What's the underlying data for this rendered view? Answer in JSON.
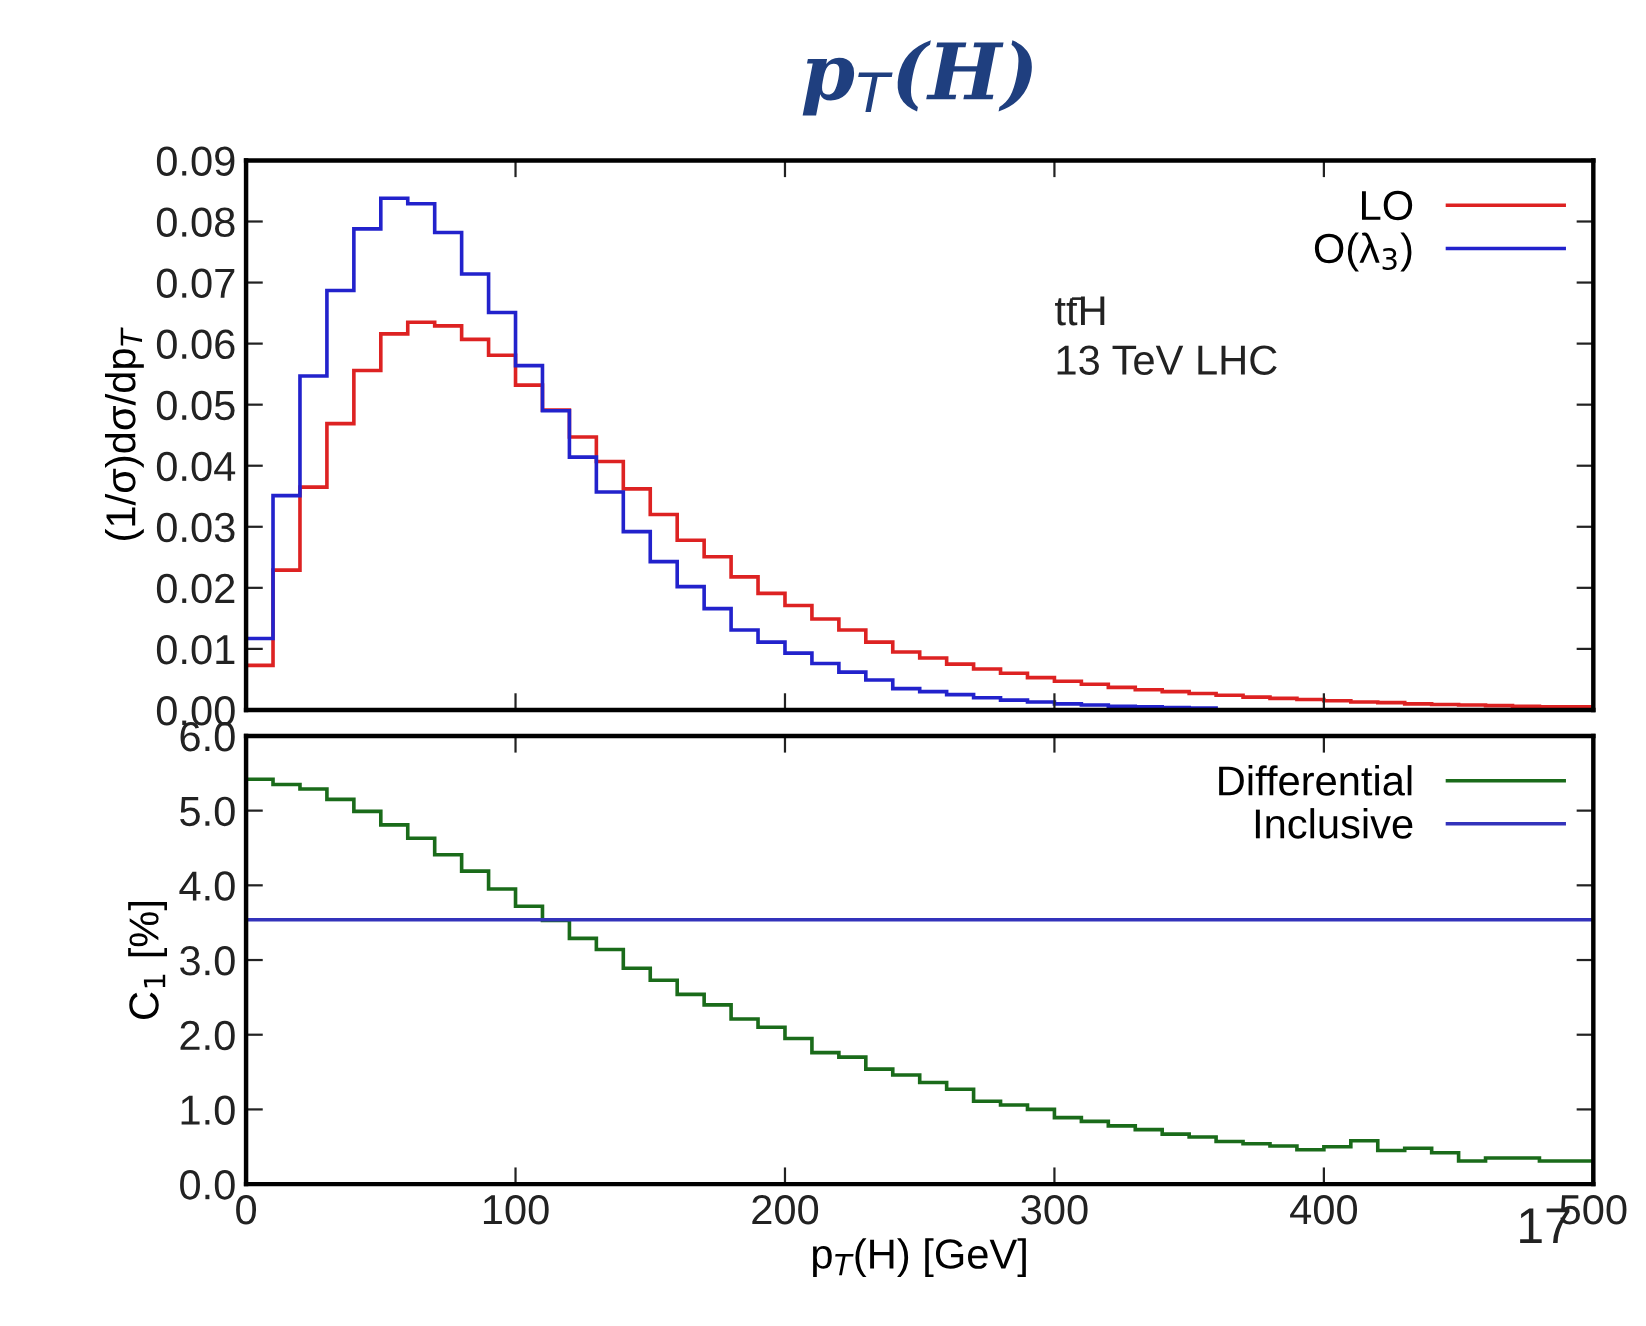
{
  "chart_data": [
    {
      "type": "histogram",
      "title": "p$_{T}$(H)",
      "ylabel": "(1/σ)dσ/dp$_{T}$",
      "bins": [
        0,
        10,
        20,
        30,
        40,
        50,
        60,
        70,
        80,
        90,
        100,
        110,
        120,
        130,
        140,
        150,
        160,
        170,
        180,
        190,
        200,
        210,
        220,
        230,
        240,
        250,
        260,
        270,
        280,
        290,
        300,
        310,
        320,
        330,
        340,
        350,
        360,
        370,
        380,
        390,
        400,
        410,
        420,
        430,
        440,
        450,
        460,
        470,
        480,
        490,
        500
      ],
      "series": [
        {
          "name": "LO",
          "color": "#dd2222",
          "values": [
            0.0073,
            0.0229,
            0.0365,
            0.0469,
            0.0556,
            0.0616,
            0.0635,
            0.0629,
            0.0607,
            0.0581,
            0.0532,
            0.0491,
            0.0447,
            0.0407,
            0.0362,
            0.032,
            0.0278,
            0.0251,
            0.0218,
            0.0191,
            0.0171,
            0.0149,
            0.0131,
            0.0111,
            0.0095,
            0.0085,
            0.0075,
            0.0067,
            0.006,
            0.0053,
            0.0047,
            0.0042,
            0.0037,
            0.0033,
            0.003,
            0.0027,
            0.0024,
            0.0021,
            0.0019,
            0.0017,
            0.0015,
            0.0013,
            0.0012,
            0.001,
            0.0009,
            0.0008,
            0.0007,
            0.0006,
            0.0005,
            0.0005
          ]
        },
        {
          "name": "O(λ$_{3}$)",
          "color": "#2222cc",
          "bins": [
            0,
            10,
            20,
            30,
            40,
            50,
            60,
            70,
            80,
            90,
            100,
            110,
            120,
            130,
            140,
            150,
            160,
            170,
            180,
            190,
            200,
            210,
            220,
            230,
            240,
            250,
            260,
            270,
            280,
            290,
            300,
            310,
            320,
            330,
            340,
            350,
            360
          ],
          "values": [
            0.0117,
            0.0351,
            0.0547,
            0.0687,
            0.0788,
            0.0838,
            0.0829,
            0.0782,
            0.0714,
            0.0651,
            0.0564,
            0.049,
            0.0414,
            0.0357,
            0.0292,
            0.0243,
            0.0202,
            0.0166,
            0.0131,
            0.0111,
            0.0093,
            0.0076,
            0.0062,
            0.0049,
            0.0035,
            0.003,
            0.0025,
            0.002,
            0.0016,
            0.0013,
            0.001,
            0.0008,
            0.0006,
            0.0005,
            0.0004,
            0.0003
          ]
        }
      ],
      "annotations": [
        "tt̄H",
        "13 TeV LHC"
      ],
      "xlim": [
        0,
        500
      ],
      "xticks": [
        0,
        100,
        200,
        300,
        400,
        500
      ],
      "ylim": [
        0,
        0.09
      ],
      "yticks": [
        {
          "value": 0,
          "label": "0.00"
        },
        {
          "value": 0.01,
          "label": "0.01"
        },
        {
          "value": 0.02,
          "label": "0.02"
        },
        {
          "value": 0.03,
          "label": "0.03"
        },
        {
          "value": 0.04,
          "label": "0.04"
        },
        {
          "value": 0.05,
          "label": "0.05"
        },
        {
          "value": 0.06,
          "label": "0.06"
        },
        {
          "value": 0.07,
          "label": "0.07"
        },
        {
          "value": 0.08,
          "label": "0.08"
        },
        {
          "value": 0.09,
          "label": "0.09"
        }
      ],
      "tick_labels": "y",
      "legend": "top right",
      "grid": false
    },
    {
      "type": "histogram",
      "xlabel": "p$_{T}$(H) [GeV]",
      "ylabel": "C$_{1}$ [%]",
      "bins": [
        0,
        10,
        20,
        30,
        40,
        50,
        60,
        70,
        80,
        90,
        100,
        110,
        120,
        130,
        140,
        150,
        160,
        170,
        180,
        190,
        200,
        210,
        220,
        230,
        240,
        250,
        260,
        270,
        280,
        290,
        300,
        310,
        320,
        330,
        340,
        350,
        360,
        370,
        380,
        390,
        400,
        410,
        420,
        430,
        440,
        450,
        460,
        470,
        480,
        490,
        500
      ],
      "series": [
        {
          "name": "Differential",
          "color": "#1a6b1a",
          "values": [
            5.42,
            5.35,
            5.29,
            5.15,
            4.99,
            4.81,
            4.63,
            4.41,
            4.19,
            3.95,
            3.72,
            3.53,
            3.29,
            3.14,
            2.89,
            2.73,
            2.54,
            2.4,
            2.21,
            2.1,
            1.95,
            1.76,
            1.7,
            1.54,
            1.46,
            1.36,
            1.27,
            1.11,
            1.06,
            1.0,
            0.89,
            0.84,
            0.78,
            0.73,
            0.67,
            0.63,
            0.57,
            0.54,
            0.51,
            0.46,
            0.5,
            0.58,
            0.45,
            0.48,
            0.42,
            0.31,
            0.35,
            0.35,
            0.31,
            0.31
          ]
        }
      ],
      "ref_lines": [
        {
          "axis": "y",
          "value": 3.54,
          "label": "Inclusive",
          "color": "#3333bb"
        }
      ],
      "annotations": [
        "17"
      ],
      "xlim": [
        0,
        500
      ],
      "xticks": [
        0,
        100,
        200,
        300,
        400,
        500
      ],
      "ylim": [
        0,
        6
      ],
      "yticks": [
        {
          "value": 0,
          "label": "0.0"
        },
        {
          "value": 1,
          "label": "1.0"
        },
        {
          "value": 2,
          "label": "2.0"
        },
        {
          "value": 3,
          "label": "3.0"
        },
        {
          "value": 4,
          "label": "4.0"
        },
        {
          "value": 5,
          "label": "5.0"
        },
        {
          "value": 6,
          "label": "6.0"
        }
      ],
      "legend": "top right",
      "grid": false
    }
  ]
}
